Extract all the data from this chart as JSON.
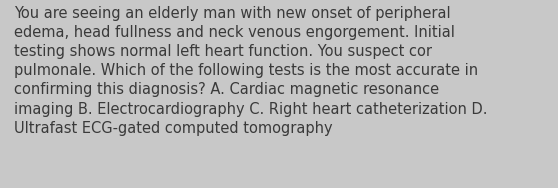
{
  "lines": [
    "You are seeing an elderly man with new onset of peripheral",
    "edema, head fullness and neck venous engorgement. Initial",
    "testing shows normal left heart function. You suspect cor",
    "pulmonale. Which of the following tests is the most accurate in",
    "confirming this diagnosis? A. Cardiac magnetic resonance",
    "imaging B. Electrocardiography C. Right heart catheterization D.",
    "Ultrafast ECG-gated computed tomography"
  ],
  "background_color": "#c8c8c8",
  "text_color": "#3a3a3a",
  "font_size": 10.5,
  "fig_width": 5.58,
  "fig_height": 1.88,
  "dpi": 100
}
